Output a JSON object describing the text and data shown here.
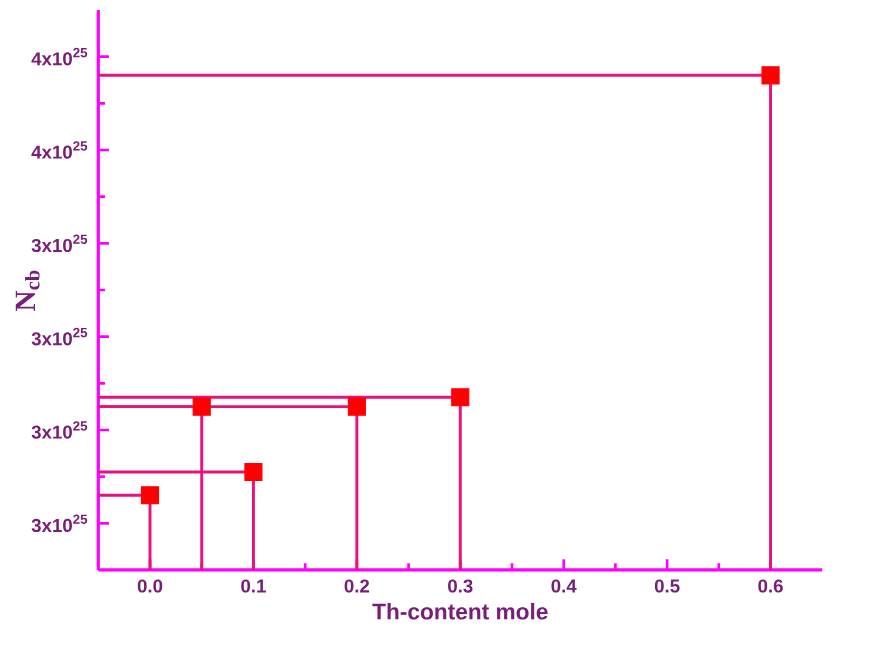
{
  "chart_data": {
    "type": "lollipop",
    "xlabel": "Th-content  mole",
    "ylabel": "N$_{cb}$",
    "x": [
      0.0,
      0.05,
      0.1,
      0.2,
      0.3,
      0.6
    ],
    "series": [
      {
        "color": "#ff0000",
        "values": [
          2.86e+25,
          3.05e+25,
          2.91e+25,
          3.05e+25,
          3.07e+25,
          3.76e+25
        ]
      }
    ],
    "marker": "square",
    "xlim": [
      -0.05,
      0.65
    ],
    "xticks": [
      {
        "value": 0,
        "label": "0.0"
      },
      {
        "value": 0.1,
        "label": "0.1"
      },
      {
        "value": 0.2,
        "label": "0.2"
      },
      {
        "value": 0.3,
        "label": "0.3"
      },
      {
        "value": 0.4,
        "label": "0.4"
      },
      {
        "value": 0.5,
        "label": "0.5"
      },
      {
        "value": 0.6,
        "label": "0.6"
      }
    ],
    "ylim": [
      2.7e+25,
      3.9e+25
    ],
    "yticks": [
      {
        "value": 2.8e+25,
        "label": "3x10$^{25}$"
      },
      {
        "value": 3e+25,
        "label": "3x10$^{25}$"
      },
      {
        "value": 3.2e+25,
        "label": "3x10$^{25}$"
      },
      {
        "value": 3.4e+25,
        "label": "3x10$^{25}$"
      },
      {
        "value": 3.6e+25,
        "label": "4x10$^{25}$"
      },
      {
        "value": 3.8e+25,
        "label": "4x10$^{25}$"
      }
    ]
  }
}
